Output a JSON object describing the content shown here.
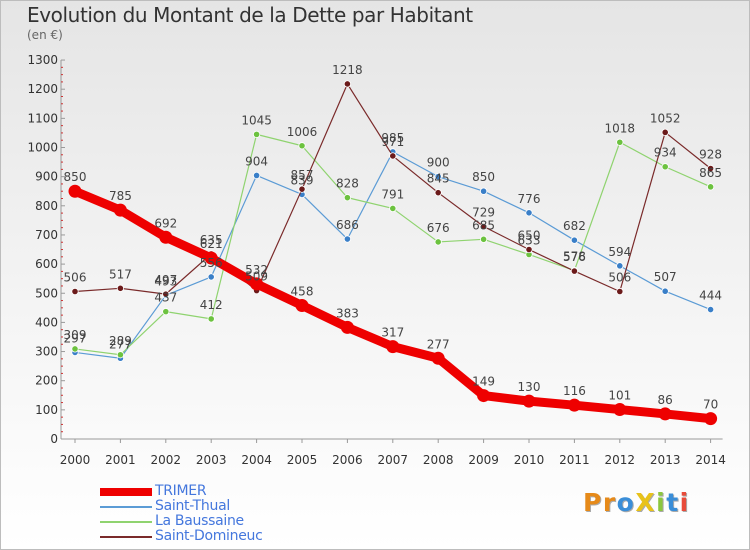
{
  "title": "Evolution du Montant de la Dette par Habitant",
  "unit_label": "(en €)",
  "logo": {
    "text": "ProXiti",
    "letters": [
      {
        "ch": "P",
        "color": "#e68a1a"
      },
      {
        "ch": "r",
        "color": "#e68a1a"
      },
      {
        "ch": "o",
        "color": "#3a8ed8"
      },
      {
        "ch": "X",
        "color": "#e8c21a"
      },
      {
        "ch": "i",
        "color": "#8cc63f"
      },
      {
        "ch": "t",
        "color": "#3a8ed8"
      },
      {
        "ch": "i",
        "color": "#e84b3a"
      }
    ]
  },
  "chart_data": {
    "type": "line",
    "title": "Evolution du Montant de la Dette par Habitant",
    "ylabel": "(en €)",
    "ylim": [
      0,
      1300
    ],
    "yticks": [
      0,
      100,
      200,
      300,
      400,
      500,
      600,
      700,
      800,
      900,
      1000,
      1100,
      1200,
      1300
    ],
    "grid": false,
    "legend_position": "bottom-left",
    "x": [
      "2000",
      "2001",
      "2002",
      "2003",
      "2004",
      "2005",
      "2006",
      "2007",
      "2008",
      "2009",
      "2010",
      "2011",
      "2012",
      "2013",
      "2014"
    ],
    "series": [
      {
        "name": "TRIMER",
        "color": "#ee0000",
        "marker": "#ee0000",
        "values": [
          850,
          785,
          692,
          621,
          532,
          458,
          383,
          317,
          277,
          149,
          130,
          116,
          101,
          86,
          70
        ]
      },
      {
        "name": "Saint-Thual",
        "color": "#5b9bd5",
        "marker": "#3a7fc8",
        "values": [
          297,
          277,
          493,
          556,
          904,
          839,
          686,
          985,
          900,
          850,
          776,
          682,
          594,
          507,
          444
        ]
      },
      {
        "name": "La Baussaine",
        "color": "#8fd36f",
        "marker": "#6cc23f",
        "values": [
          309,
          289,
          437,
          412,
          1045,
          1006,
          828,
          791,
          676,
          685,
          633,
          578,
          1018,
          934,
          865
        ]
      },
      {
        "name": "Saint-Domineuc",
        "color": "#7a2a2a",
        "marker": "#6b1a1a",
        "values": [
          506,
          517,
          497,
          635,
          509,
          857,
          1218,
          971,
          845,
          729,
          650,
          576,
          506,
          1052,
          928
        ]
      }
    ]
  }
}
